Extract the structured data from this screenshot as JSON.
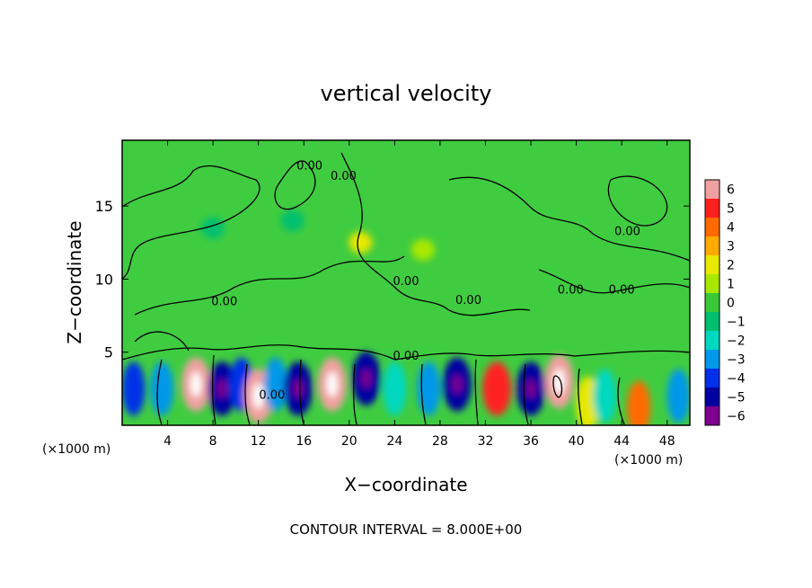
{
  "chart_data": {
    "type": "heatmap",
    "title": "vertical velocity",
    "xlabel": "X−coordinate",
    "ylabel": "Z−coordinate",
    "x_unit_left": "(×1000 m)",
    "x_unit_right": "(×1000 m)",
    "footer": "CONTOUR INTERVAL = 8.000E+00",
    "xlim": [
      0,
      50
    ],
    "ylim": [
      0,
      19.5
    ],
    "x_ticks": [
      4,
      8,
      12,
      16,
      20,
      24,
      28,
      32,
      36,
      40,
      44,
      48
    ],
    "y_ticks": [
      5,
      10,
      15
    ],
    "colorbar": {
      "ticks": [
        "6",
        "5",
        "4",
        "3",
        "2",
        "1",
        "0",
        "−1",
        "−2",
        "−3",
        "−4",
        "−5",
        "−6"
      ],
      "colors": [
        "#f0a0a0",
        "#ff2020",
        "#ff6a00",
        "#ffaa00",
        "#e8e800",
        "#a8e800",
        "#38c838",
        "#00c070",
        "#00d8c0",
        "#0098e8",
        "#0030e8",
        "#0000a0",
        "#800090"
      ]
    },
    "background_color": "#40cc40",
    "contour_labels": [
      {
        "text": "0.00",
        "x": 16.5,
        "z": 17.5
      },
      {
        "text": "0.00",
        "x": 19.5,
        "z": 16.8
      },
      {
        "text": "0.00",
        "x": 44.5,
        "z": 13.0
      },
      {
        "text": "0.00",
        "x": 25.0,
        "z": 9.6
      },
      {
        "text": "0.00",
        "x": 30.5,
        "z": 8.3
      },
      {
        "text": "0.00",
        "x": 39.5,
        "z": 9.0
      },
      {
        "text": "0.00",
        "x": 44.0,
        "z": 9.0
      },
      {
        "text": "0.00",
        "x": 9.0,
        "z": 8.2
      },
      {
        "text": "0.00",
        "x": 25.0,
        "z": 4.5
      },
      {
        "text": "0.00",
        "x": 13.2,
        "z": 1.8
      }
    ],
    "cells": [
      {
        "x": 1.0,
        "z": 2.5,
        "w": -4
      },
      {
        "x": 3.5,
        "z": 2.5,
        "w": -3
      },
      {
        "x": 6.5,
        "z": 2.8,
        "w": 6
      },
      {
        "x": 8.8,
        "z": 2.5,
        "w": -5
      },
      {
        "x": 10.5,
        "z": 2.8,
        "w": -4
      },
      {
        "x": 12.0,
        "z": 2.0,
        "w": 6
      },
      {
        "x": 13.5,
        "z": 2.8,
        "w": -3
      },
      {
        "x": 15.5,
        "z": 2.5,
        "w": -5
      },
      {
        "x": 18.5,
        "z": 2.8,
        "w": 6
      },
      {
        "x": 21.5,
        "z": 3.2,
        "w": -5
      },
      {
        "x": 24.0,
        "z": 2.5,
        "w": -2
      },
      {
        "x": 27.0,
        "z": 2.5,
        "w": -3
      },
      {
        "x": 29.5,
        "z": 2.8,
        "w": -5
      },
      {
        "x": 33.0,
        "z": 2.5,
        "w": 5
      },
      {
        "x": 36.0,
        "z": 2.5,
        "w": -5
      },
      {
        "x": 38.5,
        "z": 3.0,
        "w": 6
      },
      {
        "x": 41.0,
        "z": 1.5,
        "w": 2
      },
      {
        "x": 42.5,
        "z": 2.0,
        "w": -2
      },
      {
        "x": 45.5,
        "z": 1.2,
        "w": 4
      },
      {
        "x": 49.0,
        "z": 2.0,
        "w": -3
      },
      {
        "x": 21.0,
        "z": 12.5,
        "w": 2
      },
      {
        "x": 15.0,
        "z": 14.0,
        "w": -1
      },
      {
        "x": 8.0,
        "z": 13.5,
        "w": -1
      },
      {
        "x": 26.5,
        "z": 12.0,
        "w": 1
      }
    ]
  }
}
